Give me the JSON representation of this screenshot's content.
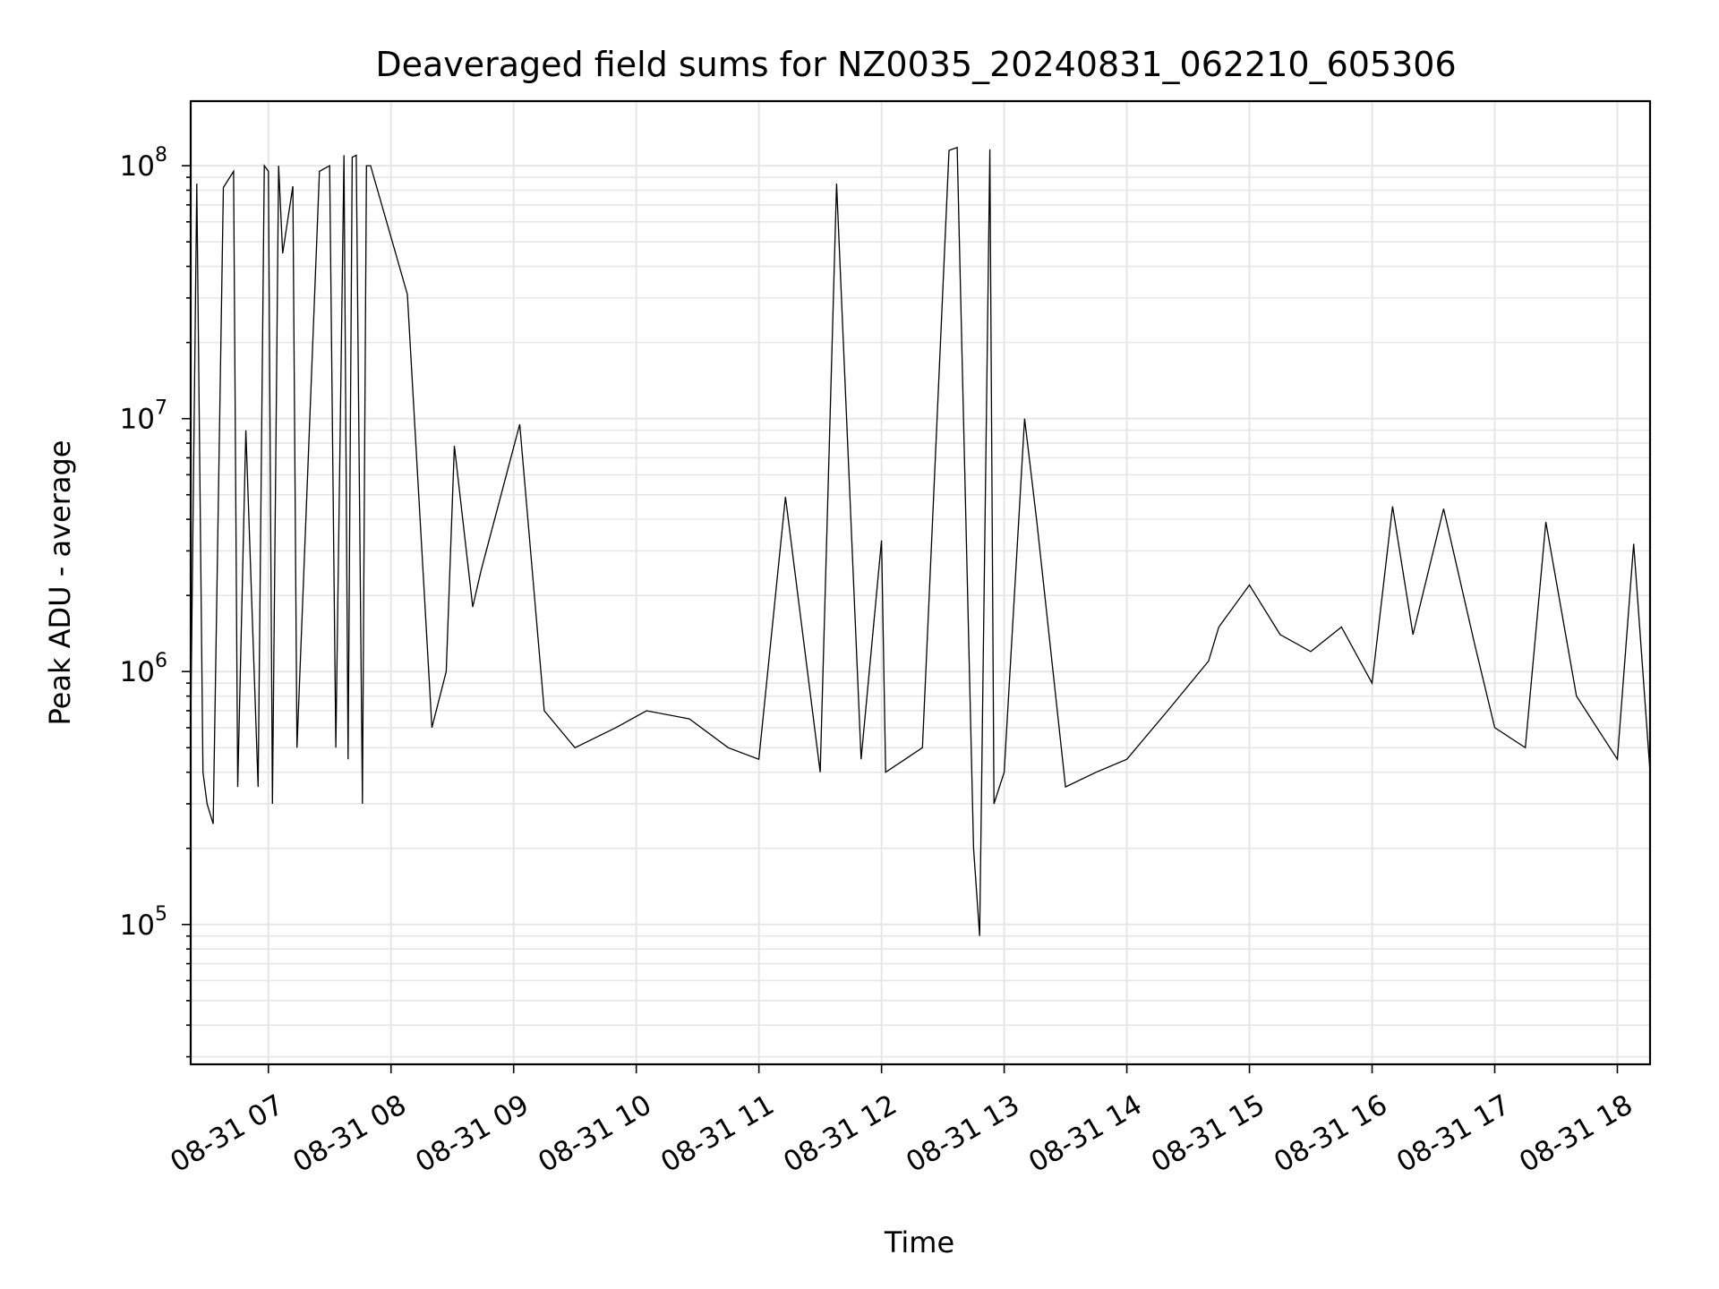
{
  "chart_data": {
    "type": "line",
    "title": "Deaveraged field sums for NZ0035_20240831_062210_605306",
    "xlabel": "Time",
    "ylabel": "Peak ADU - average",
    "yscale": "log",
    "ylim": [
      28000,
      180000000
    ],
    "xlim": [
      "2024-08-31 06:22",
      "2024-08-31 18:16"
    ],
    "grid": true,
    "line_color": "#000000",
    "grid_color": "#e6e6e6",
    "x_ticks": [
      "08-31 07",
      "08-31 08",
      "08-31 09",
      "08-31 10",
      "08-31 11",
      "08-31 12",
      "08-31 13",
      "08-31 14",
      "08-31 15",
      "08-31 16",
      "08-31 17",
      "08-31 18"
    ],
    "y_ticks": [
      {
        "value": 100000,
        "base": "10",
        "exp": "5"
      },
      {
        "value": 1000000,
        "base": "10",
        "exp": "6"
      },
      {
        "value": 10000000,
        "base": "10",
        "exp": "7"
      },
      {
        "value": 100000000,
        "base": "10",
        "exp": "8"
      }
    ],
    "series": [
      {
        "x": [
          "2024-08-31 06:22",
          "2024-08-31 06:25",
          "2024-08-31 06:28",
          "2024-08-31 06:30",
          "2024-08-31 06:33",
          "2024-08-31 06:38",
          "2024-08-31 06:43",
          "2024-08-31 06:45",
          "2024-08-31 06:49",
          "2024-08-31 06:55",
          "2024-08-31 06:58",
          "2024-08-31 07:00",
          "2024-08-31 07:02",
          "2024-08-31 07:05",
          "2024-08-31 07:07",
          "2024-08-31 07:12",
          "2024-08-31 07:14",
          "2024-08-31 07:25",
          "2024-08-31 07:30",
          "2024-08-31 07:33",
          "2024-08-31 07:37",
          "2024-08-31 07:39",
          "2024-08-31 07:41",
          "2024-08-31 07:43",
          "2024-08-31 07:46",
          "2024-08-31 07:48",
          "2024-08-31 07:50",
          "2024-08-31 08:08",
          "2024-08-31 08:20",
          "2024-08-31 08:27",
          "2024-08-31 08:31",
          "2024-08-31 08:40",
          "2024-08-31 08:44",
          "2024-08-31 09:03",
          "2024-08-31 09:15",
          "2024-08-31 09:30",
          "2024-08-31 09:50",
          "2024-08-31 10:05",
          "2024-08-31 10:26",
          "2024-08-31 10:45",
          "2024-08-31 11:00",
          "2024-08-31 11:13",
          "2024-08-31 11:30",
          "2024-08-31 11:38",
          "2024-08-31 11:50",
          "2024-08-31 12:00",
          "2024-08-31 12:02",
          "2024-08-31 12:20",
          "2024-08-31 12:33",
          "2024-08-31 12:37",
          "2024-08-31 12:45",
          "2024-08-31 12:48",
          "2024-08-31 12:53",
          "2024-08-31 12:55",
          "2024-08-31 13:00",
          "2024-08-31 13:10",
          "2024-08-31 13:16",
          "2024-08-31 13:30",
          "2024-08-31 13:45",
          "2024-08-31 14:00",
          "2024-08-31 14:20",
          "2024-08-31 14:40",
          "2024-08-31 14:45",
          "2024-08-31 15:00",
          "2024-08-31 15:15",
          "2024-08-31 15:30",
          "2024-08-31 15:45",
          "2024-08-31 16:00",
          "2024-08-31 16:10",
          "2024-08-31 16:20",
          "2024-08-31 16:35",
          "2024-08-31 16:50",
          "2024-08-31 17:00",
          "2024-08-31 17:15",
          "2024-08-31 17:25",
          "2024-08-31 17:40",
          "2024-08-31 18:00",
          "2024-08-31 18:08",
          "2024-08-31 18:16"
        ],
        "y": [
          600000,
          85000000,
          400000,
          300000,
          250000,
          82000000,
          95000000,
          350000,
          9000000,
          350000,
          100000000,
          95000000,
          300000,
          100000000,
          45000000,
          83000000,
          500000,
          95000000,
          100000000,
          500000,
          110000000,
          450000,
          108000000,
          110000000,
          300000,
          100000000,
          100000000,
          31000000,
          600000,
          1000000,
          7800000,
          1800000,
          2500000,
          9500000,
          700000,
          500000,
          600000,
          700000,
          650000,
          500000,
          450000,
          4900000,
          400000,
          85000000,
          450000,
          3300000,
          400000,
          500000,
          115000000,
          118000000,
          200000,
          90000,
          116000000,
          300000,
          400000,
          10000000,
          3900000,
          350000,
          400000,
          450000,
          700000,
          1100000,
          1500000,
          2200000,
          1400000,
          1200000,
          1500000,
          900000,
          4500000,
          1400000,
          4400000,
          1300000,
          600000,
          500000,
          3900000,
          800000,
          450000,
          3200000,
          400000
        ]
      }
    ]
  }
}
